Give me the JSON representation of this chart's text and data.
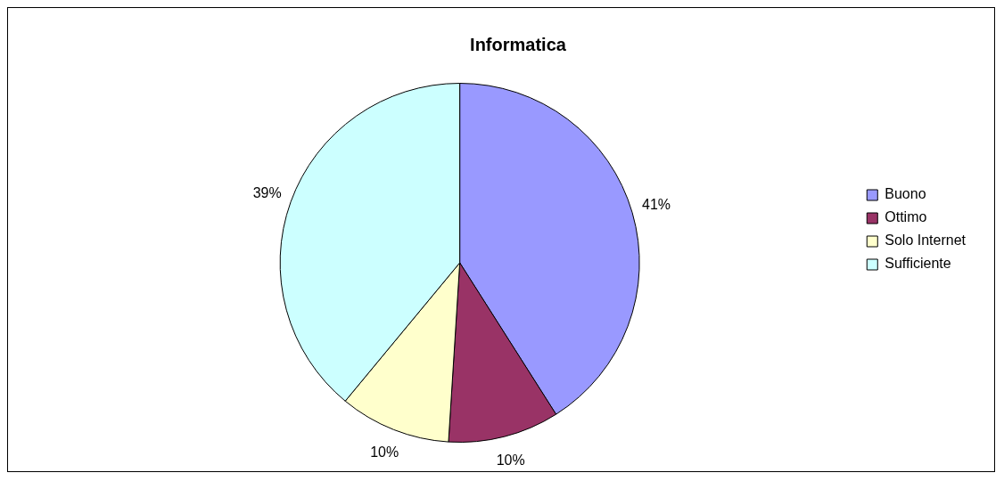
{
  "chart_data": {
    "type": "pie",
    "title": "Informatica",
    "categories": [
      "Buono",
      "Ottimo",
      "Solo Internet",
      "Sufficiente"
    ],
    "values": [
      41,
      10,
      10,
      39
    ],
    "colors": [
      "#9999ff",
      "#993366",
      "#ffffcc",
      "#ccffff"
    ],
    "value_labels": [
      "41%",
      "10%",
      "10%",
      "39%"
    ],
    "legend": "right"
  }
}
